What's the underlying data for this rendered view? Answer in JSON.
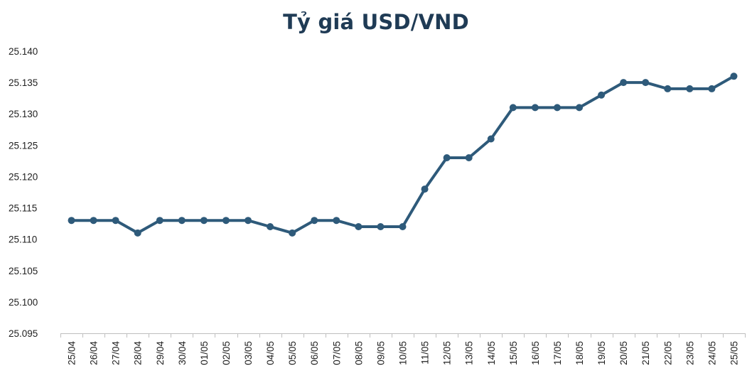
{
  "chart_data": {
    "type": "line",
    "title": "Tỷ giá USD/VND",
    "xlabel": "",
    "ylabel": "",
    "ylim": [
      25.095,
      25.14
    ],
    "yticks": [
      "25.095",
      "25.100",
      "25.105",
      "25.110",
      "25.115",
      "25.120",
      "25.125",
      "25.130",
      "25.135",
      "25.140"
    ],
    "grid": false,
    "legend": "none",
    "categories": [
      "25/04",
      "26/04",
      "27/04",
      "28/04",
      "29/04",
      "30/04",
      "01/05",
      "02/05",
      "03/05",
      "04/05",
      "05/05",
      "06/05",
      "07/05",
      "08/05",
      "09/05",
      "10/05",
      "11/05",
      "12/05",
      "13/05",
      "14/05",
      "15/05",
      "16/05",
      "17/05",
      "18/05",
      "19/05",
      "20/05",
      "21/05",
      "22/05",
      "23/05",
      "24/05",
      "25/05"
    ],
    "series": [
      {
        "color": "#2e5a7a",
        "values": [
          25.113,
          25.113,
          25.113,
          25.111,
          25.113,
          25.113,
          25.113,
          25.113,
          25.113,
          25.112,
          25.111,
          25.113,
          25.113,
          25.112,
          25.112,
          25.112,
          25.118,
          25.123,
          25.123,
          25.126,
          25.131,
          25.131,
          25.131,
          25.131,
          25.133,
          25.135,
          25.135,
          25.134,
          25.134,
          25.134,
          25.136
        ]
      }
    ]
  }
}
